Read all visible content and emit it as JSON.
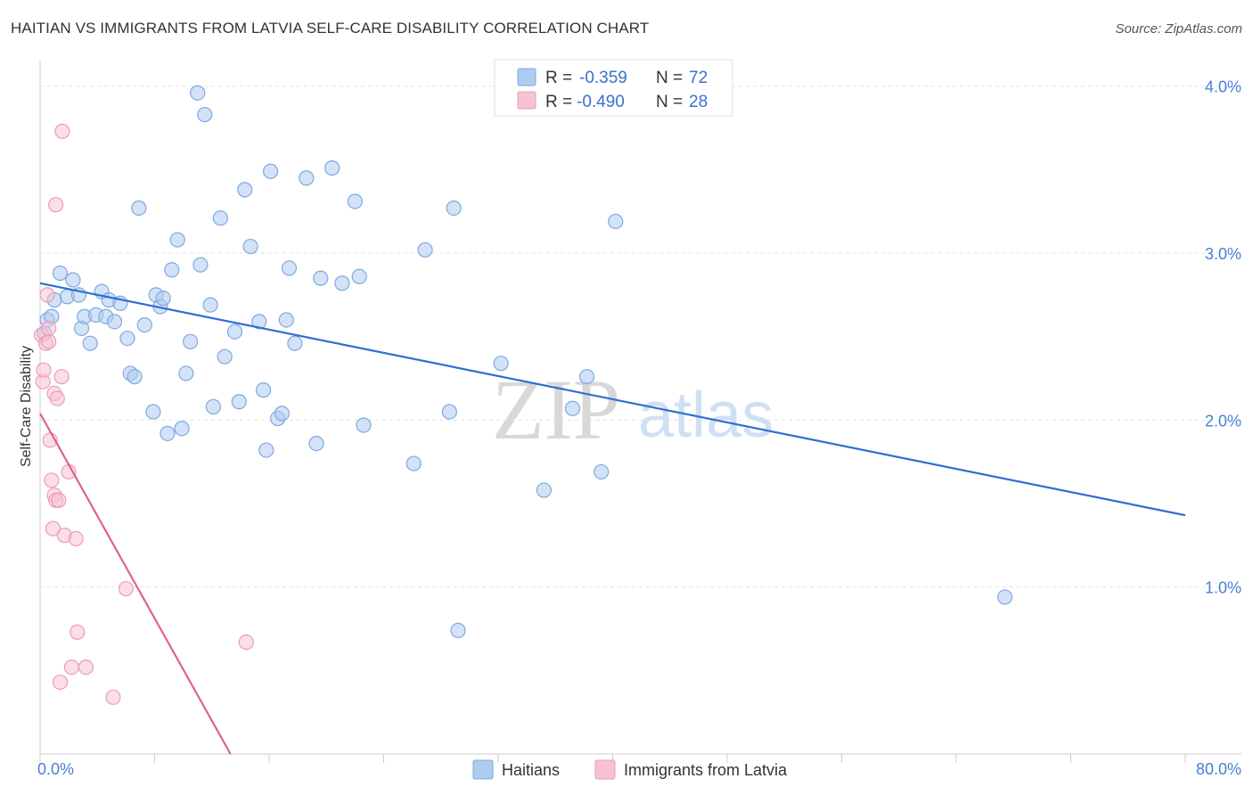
{
  "title": "HAITIAN VS IMMIGRANTS FROM LATVIA SELF-CARE DISABILITY CORRELATION CHART",
  "source": "Source: ZipAtlas.com",
  "watermark": {
    "zip": "ZIP",
    "atlas": "atlas"
  },
  "colors": {
    "blue_fill": "#aecbf0",
    "blue_stroke": "#7ea9e0",
    "blue_line": "#2e6fd0",
    "pink_fill": "#f7c3d3",
    "pink_stroke": "#ee9bb6",
    "pink_line": "#e0608e",
    "grid": "#e3e3e3",
    "tick_text": "#4a7fd6"
  },
  "legend_box": {
    "rows": [
      {
        "r_label": "R =",
        "r_value": "-0.359",
        "n_label": "N =",
        "n_value": "72"
      },
      {
        "r_label": "R =",
        "r_value": "-0.490",
        "n_label": "N =",
        "n_value": "28"
      }
    ]
  },
  "bottom_legend": [
    "Haitians",
    "Immigrants from Latvia"
  ],
  "chart_data": {
    "type": "scatter",
    "title": "HAITIAN VS IMMIGRANTS FROM LATVIA SELF-CARE DISABILITY CORRELATION CHART",
    "xlabel": "",
    "ylabel": "Self-Care Disability",
    "xlim": [
      0,
      80
    ],
    "ylim": [
      0,
      4.1
    ],
    "x_tick_labels": [
      "0.0%",
      "80.0%"
    ],
    "y_ticks": [
      1.0,
      2.0,
      3.0,
      4.0
    ],
    "y_tick_labels": [
      "1.0%",
      "2.0%",
      "3.0%",
      "4.0%"
    ],
    "grid": true,
    "legend_position": "top-center",
    "series": [
      {
        "name": "Haitians",
        "color": "#aecbf0",
        "trend": {
          "x": [
            0,
            80
          ],
          "y": [
            2.82,
            1.43
          ]
        },
        "points": [
          [
            0.3,
            2.52
          ],
          [
            0.5,
            2.6
          ],
          [
            0.8,
            2.62
          ],
          [
            1.0,
            2.72
          ],
          [
            1.4,
            2.88
          ],
          [
            1.9,
            2.74
          ],
          [
            2.3,
            2.84
          ],
          [
            2.7,
            2.75
          ],
          [
            2.9,
            2.55
          ],
          [
            3.1,
            2.62
          ],
          [
            3.5,
            2.46
          ],
          [
            3.9,
            2.63
          ],
          [
            4.3,
            2.77
          ],
          [
            4.6,
            2.62
          ],
          [
            4.8,
            2.72
          ],
          [
            5.2,
            2.59
          ],
          [
            5.6,
            2.7
          ],
          [
            6.1,
            2.49
          ],
          [
            6.3,
            2.28
          ],
          [
            6.6,
            2.26
          ],
          [
            6.9,
            3.27
          ],
          [
            7.3,
            2.57
          ],
          [
            7.9,
            2.05
          ],
          [
            8.1,
            2.75
          ],
          [
            8.4,
            2.68
          ],
          [
            8.6,
            2.73
          ],
          [
            8.9,
            1.92
          ],
          [
            9.2,
            2.9
          ],
          [
            9.6,
            3.08
          ],
          [
            9.9,
            1.95
          ],
          [
            10.2,
            2.28
          ],
          [
            10.5,
            2.47
          ],
          [
            11.0,
            3.96
          ],
          [
            11.2,
            2.93
          ],
          [
            11.5,
            3.83
          ],
          [
            11.9,
            2.69
          ],
          [
            12.1,
            2.08
          ],
          [
            12.6,
            3.21
          ],
          [
            12.9,
            2.38
          ],
          [
            13.6,
            2.53
          ],
          [
            13.9,
            2.11
          ],
          [
            14.3,
            3.38
          ],
          [
            14.7,
            3.04
          ],
          [
            15.3,
            2.59
          ],
          [
            15.6,
            2.18
          ],
          [
            15.8,
            1.82
          ],
          [
            16.1,
            3.49
          ],
          [
            16.6,
            2.01
          ],
          [
            16.9,
            2.04
          ],
          [
            17.2,
            2.6
          ],
          [
            17.4,
            2.91
          ],
          [
            17.8,
            2.46
          ],
          [
            18.6,
            3.45
          ],
          [
            19.3,
            1.86
          ],
          [
            19.6,
            2.85
          ],
          [
            20.4,
            3.51
          ],
          [
            21.1,
            2.82
          ],
          [
            22.0,
            3.31
          ],
          [
            22.3,
            2.86
          ],
          [
            22.6,
            1.97
          ],
          [
            26.1,
            1.74
          ],
          [
            26.9,
            3.02
          ],
          [
            28.6,
            2.05
          ],
          [
            28.9,
            3.27
          ],
          [
            29.2,
            0.74
          ],
          [
            32.2,
            2.34
          ],
          [
            35.2,
            1.58
          ],
          [
            37.2,
            2.07
          ],
          [
            38.2,
            2.26
          ],
          [
            39.2,
            1.69
          ],
          [
            40.2,
            3.19
          ],
          [
            67.4,
            0.94
          ]
        ]
      },
      {
        "name": "Immigrants from Latvia",
        "color": "#f7c3d3",
        "trend": {
          "x": [
            0,
            13.3
          ],
          "y": [
            2.04,
            0.0
          ]
        },
        "points": [
          [
            0.1,
            2.51
          ],
          [
            0.2,
            2.23
          ],
          [
            0.25,
            2.3
          ],
          [
            0.4,
            2.46
          ],
          [
            0.5,
            2.75
          ],
          [
            0.6,
            2.47
          ],
          [
            0.6,
            2.55
          ],
          [
            0.7,
            1.88
          ],
          [
            0.8,
            1.64
          ],
          [
            0.9,
            1.35
          ],
          [
            1.0,
            1.55
          ],
          [
            1.0,
            2.16
          ],
          [
            1.1,
            1.52
          ],
          [
            1.1,
            3.29
          ],
          [
            1.2,
            2.13
          ],
          [
            1.3,
            1.52
          ],
          [
            1.4,
            0.43
          ],
          [
            1.5,
            2.26
          ],
          [
            1.55,
            3.73
          ],
          [
            1.7,
            1.31
          ],
          [
            2.0,
            1.69
          ],
          [
            2.2,
            0.52
          ],
          [
            2.5,
            1.29
          ],
          [
            2.6,
            0.73
          ],
          [
            3.2,
            0.52
          ],
          [
            5.1,
            0.34
          ],
          [
            6.0,
            0.99
          ],
          [
            14.4,
            0.67
          ]
        ]
      }
    ]
  }
}
